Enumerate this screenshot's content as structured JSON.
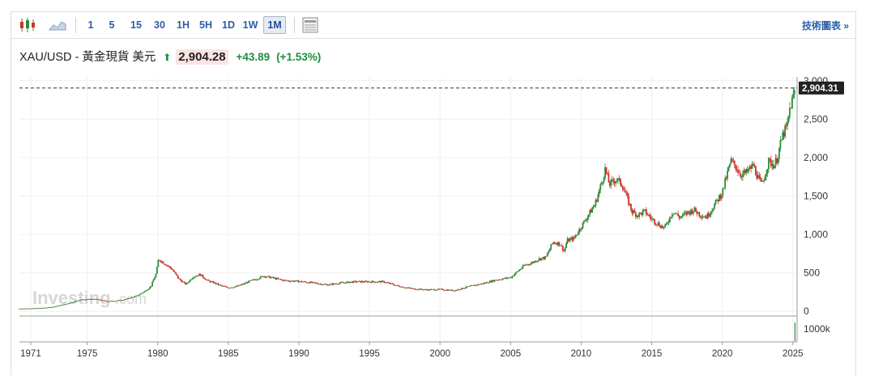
{
  "toolbar": {
    "intervals": [
      "1",
      "5",
      "15",
      "30",
      "1H",
      "5H",
      "1D",
      "1W",
      "1M"
    ],
    "active_interval": "1M",
    "tech_link": "技術圖表 »",
    "icons": [
      "candlestick-icon",
      "area-chart-icon",
      "table-icon"
    ]
  },
  "quote": {
    "name": "XAU/USD - 黃金現貨 美元",
    "price": "2,904.28",
    "change": "+43.89",
    "change_pct": "(+1.53%)",
    "direction": "up"
  },
  "watermark": {
    "brand": "Investing",
    "suffix": ".com"
  },
  "colors": {
    "up": "#2e8b3a",
    "down": "#d0312d",
    "link": "#2a5ea8",
    "current_line": "#333333"
  },
  "chart_data": {
    "type": "line",
    "title": "",
    "xlabel": "",
    "ylabel": "",
    "x_tick_labels": [
      "1971",
      "1975",
      "1980",
      "1985",
      "1990",
      "1995",
      "2000",
      "2005",
      "2010",
      "2015",
      "2020",
      "2025"
    ],
    "x_ticks": [
      1971,
      1975,
      1980,
      1985,
      1990,
      1995,
      2000,
      2005,
      2010,
      2015,
      2020,
      2025
    ],
    "xlim": [
      1970.2,
      2025.3
    ],
    "y_tick_labels": [
      "0",
      "500",
      "1,000",
      "1,500",
      "2,000",
      "2,500",
      "3,000"
    ],
    "y_ticks": [
      0,
      500,
      1000,
      1500,
      2000,
      2500,
      3000
    ],
    "ylim": [
      -50,
      3050
    ],
    "current_value_label": "2,904.31",
    "current_value": 2904.31,
    "volume_axis_label": "1000k",
    "grid": true,
    "series": [
      {
        "x": [
          1970.2,
          1971.5,
          1972.5,
          1973.5,
          1974.5,
          1975.5,
          1976.5,
          1977.5,
          1978.5,
          1979.0,
          1979.5,
          1979.9,
          1980.05,
          1980.5,
          1981.0,
          1981.5,
          1982.0,
          1982.5,
          1983.0,
          1983.5,
          1984.0,
          1984.5,
          1985.0,
          1985.5,
          1986.0,
          1986.5,
          1987.0,
          1987.5,
          1988.0,
          1988.5,
          1989.0,
          1990.0,
          1991.0,
          1992.0,
          1993.0,
          1994.0,
          1995.0,
          1996.0,
          1997.0,
          1998.0,
          1999.0,
          2000.0,
          2001.0,
          2002.0,
          2003.0,
          2004.0,
          2005.0,
          2006.0,
          2006.5,
          2007.0,
          2007.5,
          2008.0,
          2008.5,
          2008.8,
          2009.0,
          2009.5,
          2010.0,
          2010.5,
          2011.0,
          2011.5,
          2011.7,
          2012.0,
          2012.5,
          2012.9,
          2013.3,
          2013.6,
          2014.0,
          2014.5,
          2015.0,
          2015.5,
          2015.9,
          2016.5,
          2017.0,
          2017.5,
          2018.0,
          2018.5,
          2018.9,
          2019.5,
          2020.0,
          2020.6,
          2020.9,
          2021.3,
          2021.7,
          2022.2,
          2022.6,
          2022.8,
          2023.3,
          2023.7,
          2023.9,
          2024.3,
          2024.6,
          2024.8,
          2025.05,
          2025.15
        ],
        "values": [
          35,
          40,
          55,
          95,
          150,
          160,
          130,
          145,
          200,
          250,
          320,
          500,
          680,
          620,
          550,
          420,
          350,
          450,
          480,
          400,
          370,
          330,
          310,
          320,
          350,
          390,
          420,
          460,
          440,
          420,
          400,
          390,
          370,
          345,
          370,
          385,
          385,
          385,
          330,
          295,
          280,
          285,
          270,
          320,
          360,
          410,
          440,
          600,
          630,
          680,
          700,
          900,
          880,
          780,
          920,
          950,
          1100,
          1250,
          1400,
          1700,
          1850,
          1650,
          1720,
          1650,
          1450,
          1300,
          1250,
          1300,
          1200,
          1130,
          1080,
          1300,
          1220,
          1280,
          1320,
          1250,
          1230,
          1400,
          1550,
          1950,
          1900,
          1780,
          1800,
          1900,
          1700,
          1650,
          1950,
          1900,
          2000,
          2300,
          2400,
          2650,
          2800,
          2904
        ]
      }
    ]
  }
}
